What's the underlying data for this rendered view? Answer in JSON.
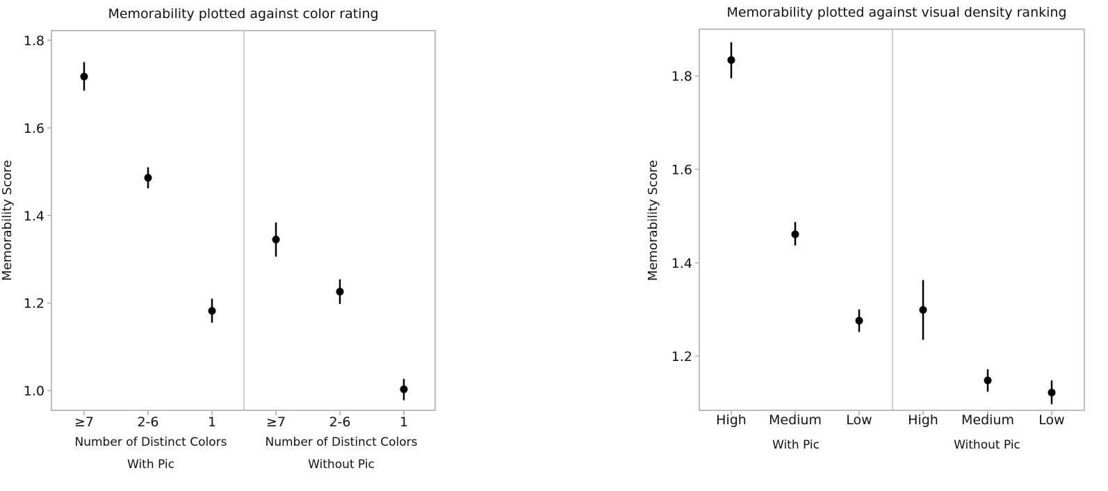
{
  "chart_data": [
    {
      "type": "scatter",
      "title": "Memorability plotted against color rating",
      "ylabel": "Memorability Score",
      "yticks": [
        "1.0",
        "1.2",
        "1.4",
        "1.6",
        "1.8"
      ],
      "ytick_values": [
        1.0,
        1.2,
        1.4,
        1.6,
        1.8
      ],
      "ylim": [
        0.955,
        1.822
      ],
      "error_bars": true,
      "grid": false,
      "panels": [
        {
          "name": "With Pic",
          "xlabel": "Number of Distinct Colors",
          "categories": [
            "≥7",
            "2-6",
            "1"
          ],
          "values": [
            1.717,
            1.486,
            1.182
          ],
          "error_low": [
            1.685,
            1.462,
            1.155
          ],
          "error_high": [
            1.75,
            1.51,
            1.21
          ]
        },
        {
          "name": "Without Pic",
          "xlabel": "Number of Distinct Colors",
          "categories": [
            "≥7",
            "2-6",
            "1"
          ],
          "values": [
            1.345,
            1.226,
            1.003
          ],
          "error_low": [
            1.306,
            1.198,
            0.978
          ],
          "error_high": [
            1.384,
            1.254,
            1.027
          ]
        }
      ]
    },
    {
      "type": "scatter",
      "title": "Memorability plotted against visual density ranking",
      "ylabel": "Memorability Score",
      "yticks": [
        "1.2",
        "1.4",
        "1.6",
        "1.8"
      ],
      "ytick_values": [
        1.2,
        1.4,
        1.6,
        1.8
      ],
      "ylim": [
        1.084,
        1.9
      ],
      "error_bars": true,
      "grid": false,
      "panels": [
        {
          "name": "With Pic",
          "xlabel": "",
          "categories": [
            "High",
            "Medium",
            "Low"
          ],
          "values": [
            1.834,
            1.461,
            1.276
          ],
          "error_low": [
            1.795,
            1.437,
            1.252
          ],
          "error_high": [
            1.872,
            1.487,
            1.3
          ]
        },
        {
          "name": "Without Pic",
          "xlabel": "",
          "categories": [
            "High",
            "Medium",
            "Low"
          ],
          "values": [
            1.299,
            1.148,
            1.122
          ],
          "error_low": [
            1.235,
            1.124,
            1.097
          ],
          "error_high": [
            1.363,
            1.172,
            1.148
          ]
        }
      ]
    }
  ]
}
